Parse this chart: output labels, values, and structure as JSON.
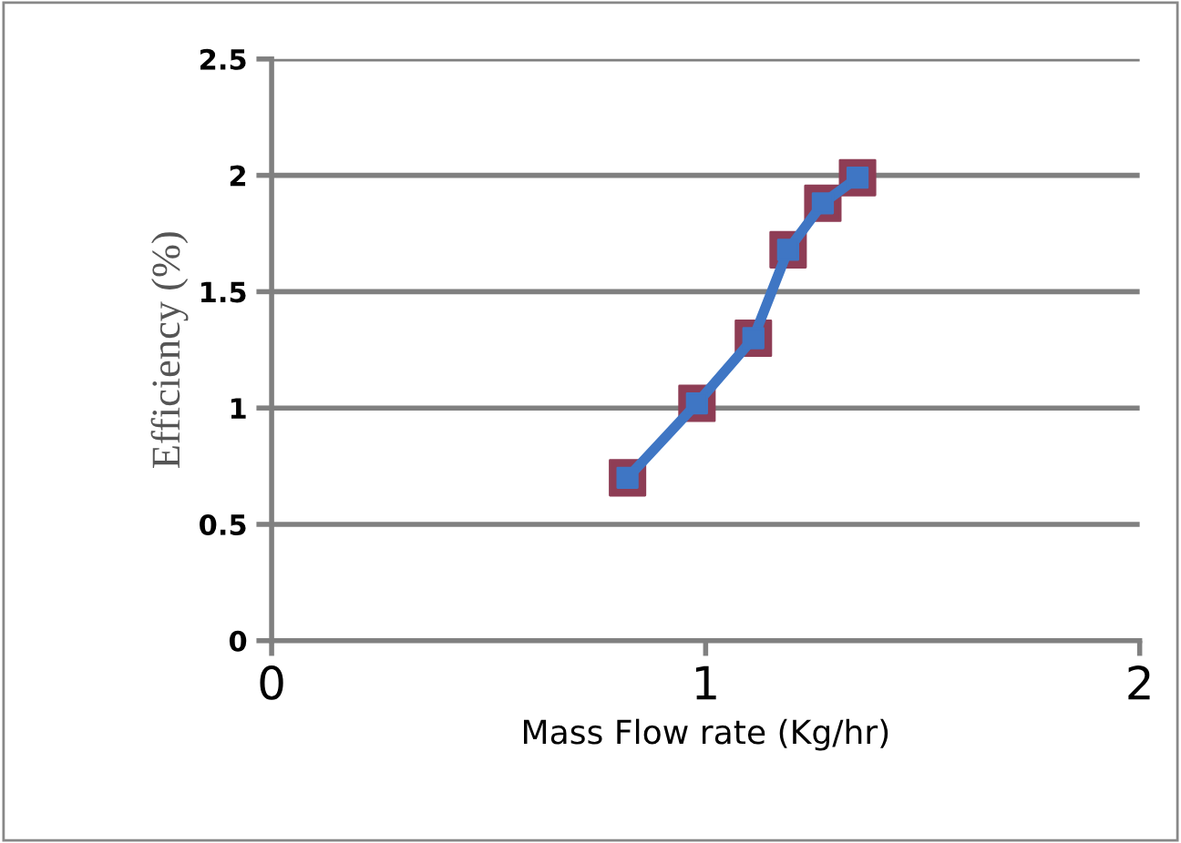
{
  "chart_data": {
    "type": "line",
    "xlabel": "Mass Flow rate (Kg/hr)",
    "ylabel": "Efficiency (%)",
    "x": [
      0.82,
      0.98,
      1.11,
      1.19,
      1.27,
      1.35
    ],
    "series": [
      {
        "color": "#3f76c4",
        "colors": [
          "#8e3d55",
          "#8e3d55",
          "#8e3d55",
          "#8e3d55",
          "#8e3d55",
          "#8e3d55"
        ],
        "values": [
          0.7,
          1.02,
          1.3,
          1.68,
          1.88,
          1.99
        ]
      }
    ],
    "xlim": [
      0,
      2
    ],
    "xticks": [
      0,
      1,
      2
    ],
    "ylim": [
      0,
      2.5
    ],
    "yticks": [
      0,
      0.5,
      1,
      1.5,
      2,
      2.5
    ],
    "grid": "y",
    "marker": "square",
    "line_style": "solid"
  }
}
